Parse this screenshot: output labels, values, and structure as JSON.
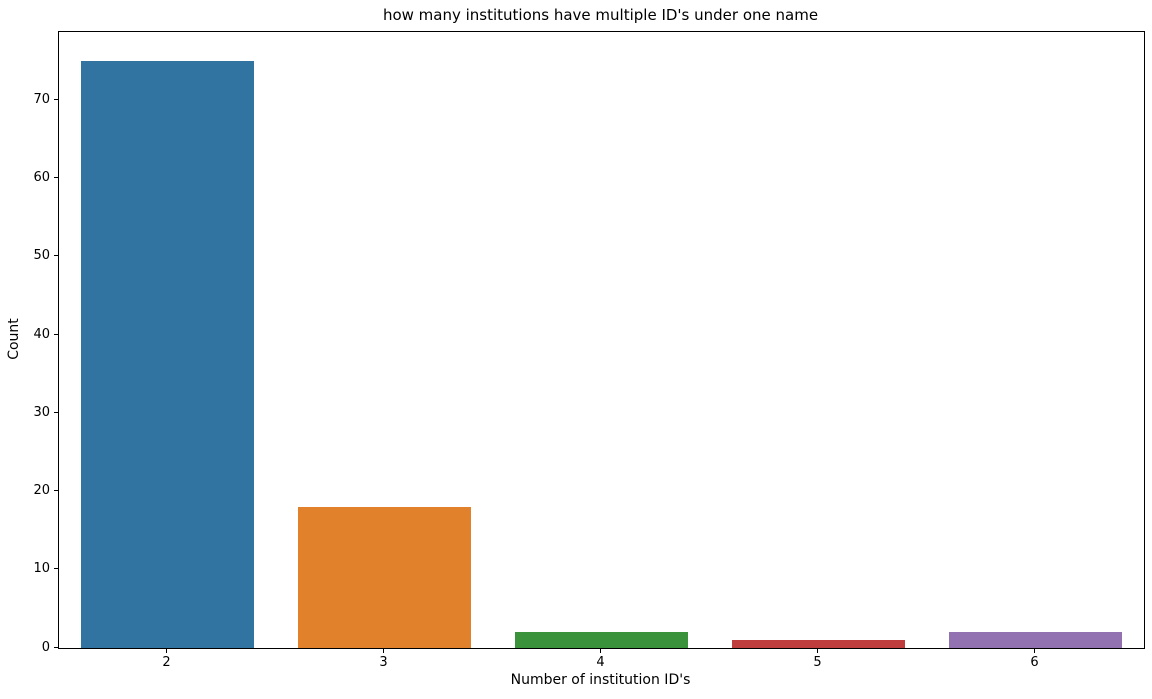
{
  "chart_data": {
    "type": "bar",
    "title": "how many institutions have multiple ID's under one name",
    "xlabel": "Number of institution ID's",
    "ylabel": "Count",
    "categories": [
      "2",
      "3",
      "4",
      "5",
      "6"
    ],
    "values": [
      75,
      18,
      2,
      1,
      2
    ],
    "bar_colors": [
      "#3274a1",
      "#e1812c",
      "#3a923a",
      "#c03d3e",
      "#9372b2"
    ],
    "yticks": [
      0,
      10,
      20,
      30,
      40,
      50,
      60,
      70
    ],
    "ylim": [
      0,
      78.75
    ],
    "grid": false,
    "legend_position": "none",
    "bar_width_fraction": 0.8
  }
}
